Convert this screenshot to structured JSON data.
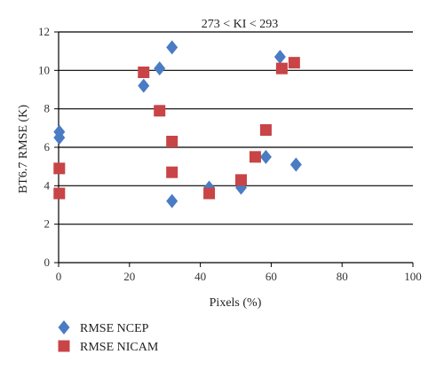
{
  "chart_data": {
    "type": "scatter",
    "title": "273 < KI < 293",
    "xlabel": "Pixels (%)",
    "ylabel": "BT6.7 RMSE (K)",
    "xlim": [
      0,
      100
    ],
    "ylim": [
      0,
      12
    ],
    "xticks": [
      0,
      20,
      40,
      60,
      80,
      100
    ],
    "yticks": [
      0,
      2,
      4,
      6,
      8,
      10,
      12
    ],
    "grid": "horizontal",
    "legend_position": "bottom-left",
    "series": [
      {
        "name": "RMSE NCEP",
        "marker": "diamond",
        "color": "#4a7cc4",
        "points": [
          {
            "x": 0.2,
            "y": 6.8
          },
          {
            "x": 0.2,
            "y": 6.5
          },
          {
            "x": 24,
            "y": 9.2
          },
          {
            "x": 28.5,
            "y": 10.1
          },
          {
            "x": 32,
            "y": 11.2
          },
          {
            "x": 32,
            "y": 3.2
          },
          {
            "x": 42.5,
            "y": 3.9
          },
          {
            "x": 51.5,
            "y": 3.9
          },
          {
            "x": 58.5,
            "y": 5.5
          },
          {
            "x": 62.5,
            "y": 10.7
          },
          {
            "x": 67,
            "y": 5.1
          }
        ]
      },
      {
        "name": "RMSE NICAM",
        "marker": "square",
        "color": "#c84447",
        "points": [
          {
            "x": 0.2,
            "y": 4.9
          },
          {
            "x": 0.2,
            "y": 3.6
          },
          {
            "x": 24,
            "y": 9.9
          },
          {
            "x": 28.5,
            "y": 7.9
          },
          {
            "x": 32,
            "y": 6.3
          },
          {
            "x": 32,
            "y": 4.7
          },
          {
            "x": 42.5,
            "y": 3.6
          },
          {
            "x": 51.5,
            "y": 4.3
          },
          {
            "x": 55.5,
            "y": 5.5
          },
          {
            "x": 58.5,
            "y": 6.9
          },
          {
            "x": 63,
            "y": 10.1
          },
          {
            "x": 66.5,
            "y": 10.4
          }
        ]
      }
    ]
  }
}
